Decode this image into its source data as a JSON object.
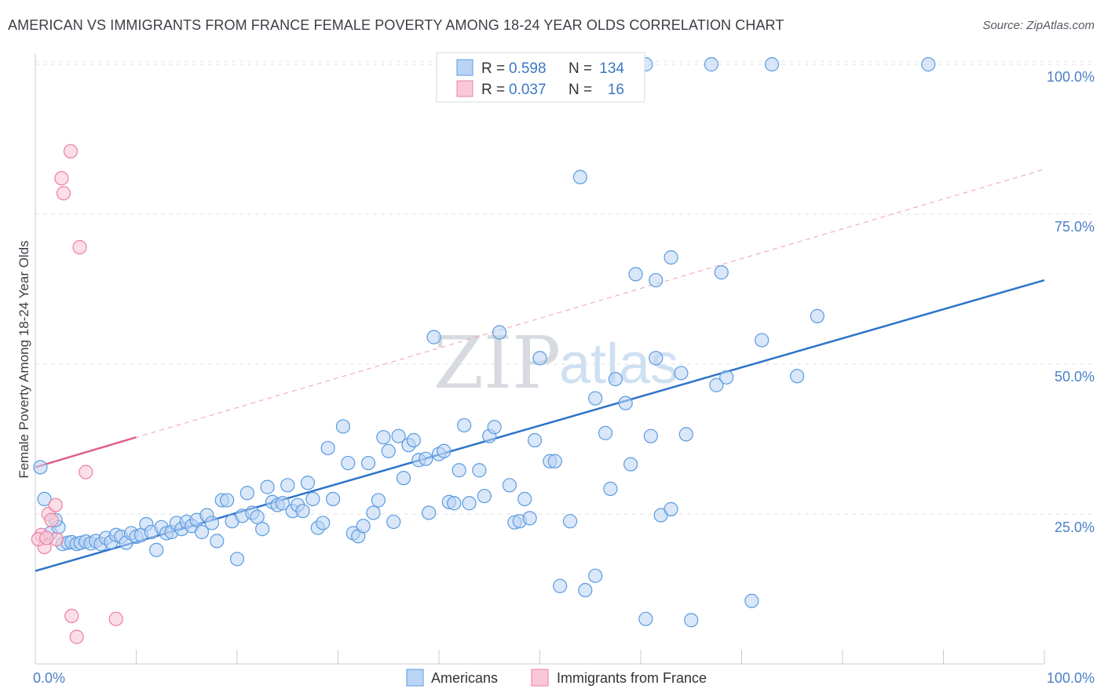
{
  "title": "AMERICAN VS IMMIGRANTS FROM FRANCE FEMALE POVERTY AMONG 18-24 YEAR OLDS CORRELATION CHART",
  "source": "Source: ZipAtlas.com",
  "watermark": {
    "zip": "ZIP",
    "atlas": "atlas"
  },
  "colors": {
    "americans": "#5b9be0",
    "americans_fill": "#b9d4f4",
    "france": "#ec7fa2",
    "france_fill": "#f9c8d7",
    "trend_blue": "#2f74c9",
    "trend_pink": "#e0608a",
    "grid": "#dde1e6",
    "tick_label": "#4a80c7"
  },
  "legend": {
    "r_label": "R =",
    "n_label": "N =",
    "americans_r": "0.598",
    "americans_n": "134",
    "france_r": "0.037",
    "france_n": "16"
  },
  "bottom_legend": {
    "americans": "Americans",
    "france": "Immigrants from France"
  },
  "chart_data": {
    "type": "scatter",
    "title": "AMERICAN VS IMMIGRANTS FROM FRANCE FEMALE POVERTY AMONG 18-24 YEAR OLDS CORRELATION CHART",
    "xlabel": "",
    "ylabel": "Female Poverty Among 18-24 Year Olds",
    "xlim": [
      0,
      100
    ],
    "ylim": [
      0,
      102
    ],
    "x_tick_labels": [
      "0.0%",
      "100.0%"
    ],
    "y_ticks": [
      25,
      50,
      75,
      100
    ],
    "y_tick_labels": [
      "25.0%",
      "50.0%",
      "75.0%",
      "100.0%"
    ],
    "grid": true,
    "legend_position": "top-center",
    "series": [
      {
        "name": "Americans",
        "r": 0.598,
        "n": 134,
        "trend": {
          "x": [
            0,
            100
          ],
          "y": [
            15.5,
            64
          ]
        },
        "points": [
          [
            0.5,
            32.8
          ],
          [
            0.9,
            27.5
          ],
          [
            1.5,
            21.8
          ],
          [
            2.3,
            22.8
          ],
          [
            2.0,
            24.0
          ],
          [
            2.7,
            20.0
          ],
          [
            3.2,
            20.2
          ],
          [
            3.6,
            20.3
          ],
          [
            4.1,
            20.0
          ],
          [
            4.5,
            20.2
          ],
          [
            5.0,
            20.4
          ],
          [
            5.5,
            20.1
          ],
          [
            6.0,
            20.5
          ],
          [
            6.5,
            20.0
          ],
          [
            7.0,
            21.0
          ],
          [
            7.5,
            20.3
          ],
          [
            8.0,
            21.5
          ],
          [
            8.5,
            21.2
          ],
          [
            9.0,
            20.2
          ],
          [
            9.5,
            21.8
          ],
          [
            10.0,
            21.2
          ],
          [
            10.5,
            21.5
          ],
          [
            11.0,
            23.3
          ],
          [
            11.5,
            22.0
          ],
          [
            12.0,
            19.0
          ],
          [
            12.5,
            22.8
          ],
          [
            13.0,
            21.8
          ],
          [
            13.5,
            22.0
          ],
          [
            14.0,
            23.5
          ],
          [
            14.5,
            22.5
          ],
          [
            15.0,
            23.7
          ],
          [
            15.5,
            23.0
          ],
          [
            16.0,
            24.0
          ],
          [
            16.5,
            22.0
          ],
          [
            17.0,
            24.8
          ],
          [
            17.5,
            23.5
          ],
          [
            18.0,
            20.5
          ],
          [
            18.5,
            27.3
          ],
          [
            19.0,
            27.3
          ],
          [
            19.5,
            23.8
          ],
          [
            20.0,
            17.5
          ],
          [
            20.5,
            24.7
          ],
          [
            21.0,
            28.5
          ],
          [
            21.5,
            25.2
          ],
          [
            22.0,
            24.5
          ],
          [
            22.5,
            22.5
          ],
          [
            23.0,
            29.5
          ],
          [
            23.5,
            27.0
          ],
          [
            24.0,
            26.5
          ],
          [
            24.5,
            26.8
          ],
          [
            25.0,
            29.8
          ],
          [
            25.5,
            25.5
          ],
          [
            26.0,
            26.5
          ],
          [
            26.5,
            25.5
          ],
          [
            27.0,
            30.2
          ],
          [
            27.5,
            27.5
          ],
          [
            28.0,
            22.7
          ],
          [
            28.5,
            23.5
          ],
          [
            29.0,
            36.0
          ],
          [
            29.5,
            27.5
          ],
          [
            30.5,
            39.6
          ],
          [
            31.0,
            33.5
          ],
          [
            31.5,
            21.8
          ],
          [
            32.0,
            21.3
          ],
          [
            32.5,
            23.0
          ],
          [
            33.0,
            33.5
          ],
          [
            33.5,
            25.2
          ],
          [
            34.0,
            27.3
          ],
          [
            34.5,
            37.8
          ],
          [
            35.0,
            35.5
          ],
          [
            35.5,
            23.7
          ],
          [
            36.0,
            38.0
          ],
          [
            36.5,
            31.0
          ],
          [
            37.0,
            36.5
          ],
          [
            37.5,
            37.3
          ],
          [
            38.0,
            34.0
          ],
          [
            39.0,
            25.2
          ],
          [
            38.7,
            34.2
          ],
          [
            39.5,
            54.5
          ],
          [
            40.0,
            35.0
          ],
          [
            40.5,
            35.5
          ],
          [
            41.0,
            27.0
          ],
          [
            41.5,
            26.8
          ],
          [
            42.0,
            32.3
          ],
          [
            42.5,
            39.8
          ],
          [
            43.0,
            26.8
          ],
          [
            44.0,
            32.3
          ],
          [
            44.5,
            28.0
          ],
          [
            45.0,
            38.0
          ],
          [
            45.5,
            39.5
          ],
          [
            46.0,
            55.3
          ],
          [
            47.0,
            29.8
          ],
          [
            47.5,
            23.6
          ],
          [
            48.0,
            23.8
          ],
          [
            48.5,
            27.5
          ],
          [
            49.0,
            24.3
          ],
          [
            49.5,
            37.3
          ],
          [
            50.0,
            51.0
          ],
          [
            51.0,
            33.8
          ],
          [
            51.5,
            33.8
          ],
          [
            52.0,
            13.0
          ],
          [
            53.0,
            23.8
          ],
          [
            54.0,
            81.2
          ],
          [
            54.5,
            12.3
          ],
          [
            55.5,
            14.7
          ],
          [
            55.5,
            44.3
          ],
          [
            56.5,
            38.5
          ],
          [
            57.0,
            29.2
          ],
          [
            57.5,
            47.5
          ],
          [
            58.5,
            43.5
          ],
          [
            59.0,
            33.3
          ],
          [
            59.5,
            65.0
          ],
          [
            60.5,
            7.5
          ],
          [
            60.5,
            100.0
          ],
          [
            61.0,
            38.0
          ],
          [
            61.5,
            51.0
          ],
          [
            61.5,
            64.0
          ],
          [
            62.0,
            24.8
          ],
          [
            63.0,
            25.8
          ],
          [
            63.0,
            67.8
          ],
          [
            64.0,
            48.5
          ],
          [
            64.5,
            38.3
          ],
          [
            65.0,
            7.3
          ],
          [
            67.0,
            100.0
          ],
          [
            67.5,
            46.5
          ],
          [
            68.0,
            65.3
          ],
          [
            68.5,
            47.8
          ],
          [
            71.0,
            10.5
          ],
          [
            72.0,
            54.0
          ],
          [
            73.0,
            100.0
          ],
          [
            75.5,
            48.0
          ],
          [
            77.5,
            58.0
          ],
          [
            88.5,
            100.0
          ]
        ]
      },
      {
        "name": "Immigrants from France",
        "r": 0.037,
        "n": 16,
        "trend": {
          "x": [
            0,
            10
          ],
          "y": [
            32.8,
            37.8
          ]
        },
        "trend_extended": {
          "x": [
            0,
            100
          ],
          "y": [
            32.8,
            82.5
          ]
        },
        "points": [
          [
            0.6,
            21.5
          ],
          [
            0.9,
            19.5
          ],
          [
            1.3,
            25.0
          ],
          [
            1.6,
            24.0
          ],
          [
            2.0,
            26.5
          ],
          [
            2.1,
            20.8
          ],
          [
            2.6,
            81.0
          ],
          [
            2.8,
            78.5
          ],
          [
            3.5,
            85.5
          ],
          [
            3.6,
            8.0
          ],
          [
            4.1,
            4.5
          ],
          [
            4.4,
            69.5
          ],
          [
            5.0,
            32.0
          ],
          [
            8.0,
            7.5
          ],
          [
            0.3,
            20.8
          ],
          [
            1.1,
            21.0
          ]
        ]
      }
    ]
  }
}
